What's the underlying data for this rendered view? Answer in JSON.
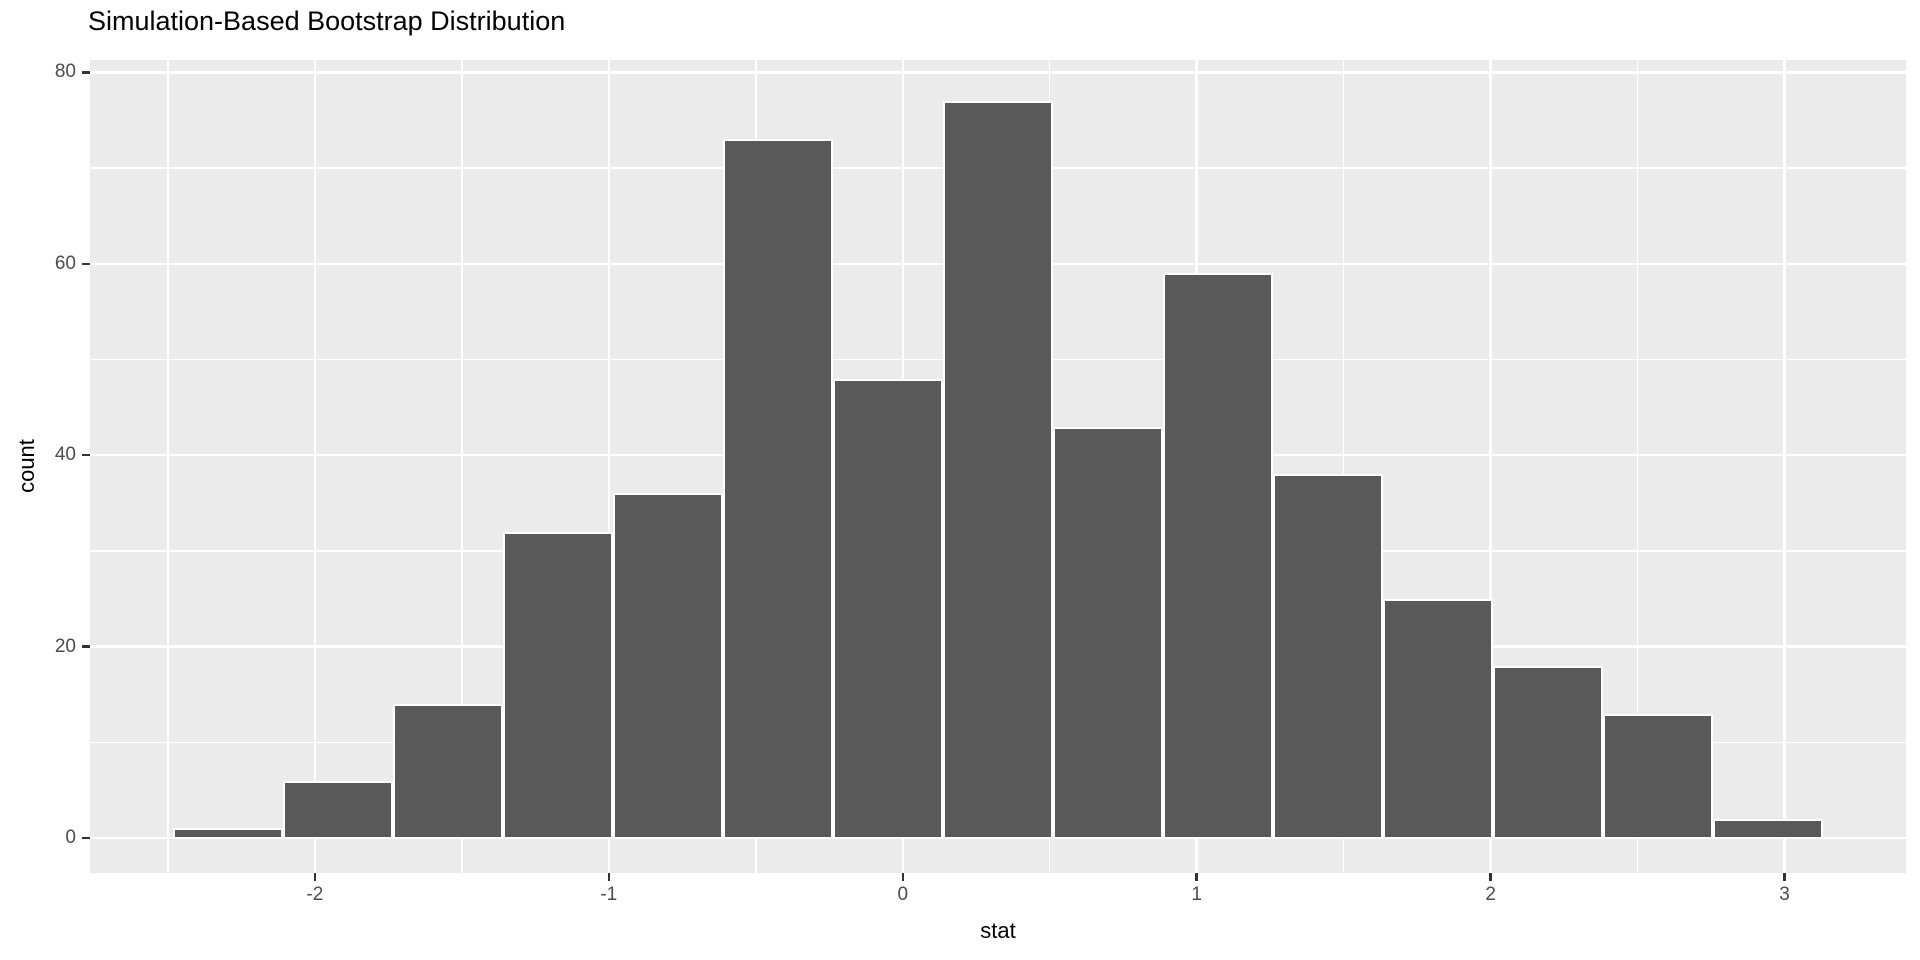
{
  "chart_data": {
    "type": "bar",
    "subtype": "histogram",
    "title": "Simulation-Based Bootstrap Distribution",
    "xlabel": "stat",
    "ylabel": "count",
    "x_ticks": [
      -2,
      -1,
      0,
      1,
      2,
      3
    ],
    "y_ticks": [
      0,
      20,
      40,
      60,
      80
    ],
    "x_minor_gridlines": [
      -2.5,
      -1.5,
      -0.5,
      0.5,
      1.5,
      2.5
    ],
    "y_minor_gridlines": [
      10,
      30,
      50,
      70
    ],
    "xlim": [
      -2.765,
      3.413
    ],
    "ylim": [
      -3.66,
      81.3
    ],
    "bin_start": -2.483,
    "bin_width": 0.3742,
    "bin_centers": [
      -2.3,
      -1.92,
      -1.55,
      -1.17,
      -0.8,
      -0.43,
      -0.05,
      0.32,
      0.7,
      1.07,
      1.45,
      1.82,
      2.19,
      2.57,
      2.94
    ],
    "counts": [
      1,
      6,
      14,
      32,
      36,
      73,
      48,
      77,
      43,
      59,
      38,
      25,
      18,
      13,
      2
    ],
    "legend": "none",
    "grid": "white major and minor gridlines on gray panel",
    "colors": {
      "bar_fill": "#595959",
      "bar_border": "#FFFFFF",
      "panel_bg": "#EBEBEB",
      "plot_bg": "#FFFFFF",
      "gridline": "#FFFFFF",
      "tick_label": "#4D4D4D",
      "axis_title": "#000000",
      "title": "#000000",
      "tick_mark": "#333333"
    }
  }
}
